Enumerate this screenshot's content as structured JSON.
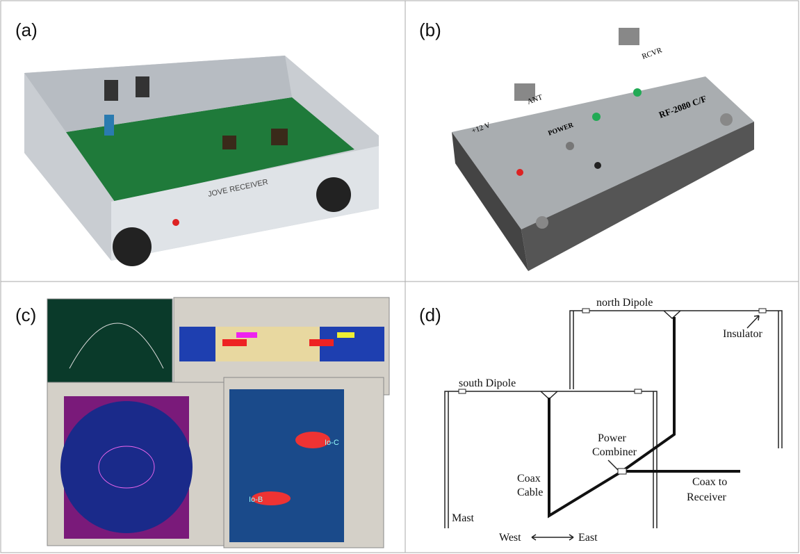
{
  "panels": {
    "a": {
      "label": "(a)",
      "device_text": "JOVE RECEIVER"
    },
    "b": {
      "label": "(b)",
      "power_text": "+12 V",
      "ant_text": "ANT",
      "rcvr_text": "RCVR",
      "power_label": "POWER",
      "model": "RF-2080 C/F"
    },
    "c": {
      "label": "(c)",
      "burst_b": "Io-B",
      "burst_c": "Io-C"
    },
    "d": {
      "label": "(d)",
      "north": "north Dipole",
      "insulator": "Insulator",
      "south": "south Dipole",
      "combiner_1": "Power",
      "combiner_2": "Combiner",
      "coax_1": "Coax",
      "coax_2": "Cable",
      "receiver_1": "Coax to",
      "receiver_2": "Receiver",
      "mast": "Mast",
      "west": "West",
      "east": "East"
    }
  }
}
